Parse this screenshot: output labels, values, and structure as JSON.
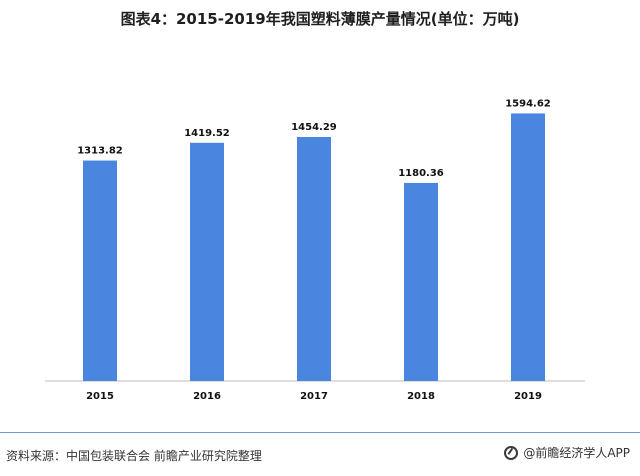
{
  "title": "图表4：2015-2019年我国塑料薄膜产量情况(单位：万吨)",
  "footer": {
    "source": "资料来源：中国包装联合会 前瞻产业研究院整理",
    "brand": "@前瞻经济学人APP",
    "brand_icon": "qianzhan-logo-icon"
  },
  "colors": {
    "bar": "#4a86e0",
    "rule": "#6e9bd6"
  },
  "chart_data": {
    "type": "bar",
    "title": "图表4：2015-2019年我国塑料薄膜产量情况(单位：万吨)",
    "categories": [
      "2015",
      "2016",
      "2017",
      "2018",
      "2019"
    ],
    "values": [
      1313.82,
      1419.52,
      1454.29,
      1180.36,
      1594.62
    ],
    "value_labels": [
      "1313.82",
      "1419.52",
      "1454.29",
      "1180.36",
      "1594.62"
    ],
    "xlabel": "",
    "ylabel": "",
    "ylim": [
      0,
      1800
    ],
    "grid": false,
    "legend": "none"
  }
}
